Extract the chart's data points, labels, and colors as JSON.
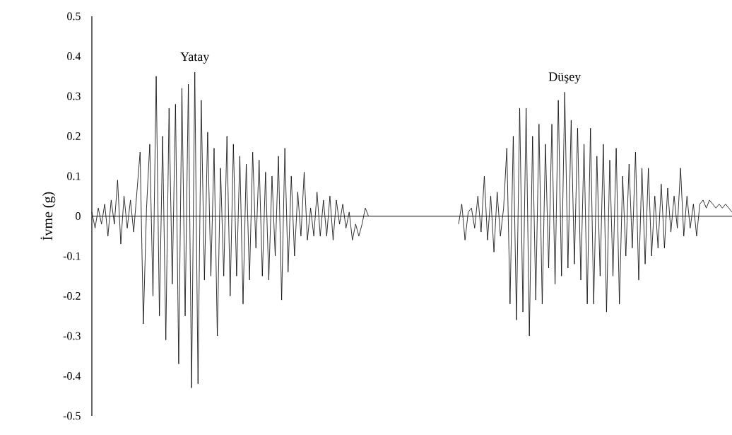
{
  "chart_data": {
    "type": "line",
    "ylabel": "İvme (g)",
    "ylim": [
      -0.5,
      0.5
    ],
    "yticks": [
      -0.5,
      -0.4,
      -0.3,
      -0.2,
      -0.1,
      0,
      0.1,
      0.2,
      0.3,
      0.4,
      0.5
    ],
    "categories": [
      null,
      null,
      null,
      null,
      null,
      null,
      null,
      null,
      null,
      null,
      null,
      null,
      null,
      null,
      null,
      null,
      null,
      null,
      null,
      null,
      null,
      null,
      null,
      null,
      null,
      null,
      null,
      null,
      null,
      null,
      null,
      null,
      null,
      null,
      null,
      null,
      null,
      null,
      null,
      null,
      null,
      null,
      null,
      null,
      null,
      null,
      null,
      null,
      null,
      null,
      null,
      null,
      null,
      null,
      null,
      null,
      null,
      null,
      null,
      null,
      null,
      null,
      null,
      null,
      null,
      null,
      null,
      null,
      null,
      null,
      null,
      null,
      null,
      null,
      null,
      null,
      null,
      null,
      null,
      null,
      null,
      null,
      null,
      null,
      null,
      null,
      null,
      null,
      null,
      null,
      null,
      null,
      null,
      null,
      null,
      null,
      null,
      null,
      null,
      null,
      null,
      null,
      null,
      null,
      null,
      null,
      null,
      null,
      null,
      null,
      null,
      null,
      null,
      null,
      null,
      null,
      null,
      null,
      null,
      null,
      null,
      null,
      null,
      null,
      null,
      null,
      null,
      null,
      null,
      null,
      null,
      null,
      null,
      null,
      null,
      null,
      null,
      null,
      null,
      null,
      null,
      null,
      null,
      null,
      null,
      null,
      null,
      null,
      null,
      null,
      null,
      null,
      null,
      null,
      null,
      null,
      null,
      null,
      null,
      null,
      null,
      null,
      null,
      null,
      null,
      null,
      null,
      null,
      null,
      null,
      null,
      null,
      null,
      null,
      null,
      null,
      null,
      null,
      null,
      null,
      null,
      null,
      null,
      null,
      null,
      null,
      null,
      null,
      null,
      null,
      null,
      null,
      null,
      null,
      null,
      null,
      null,
      null,
      null,
      null
    ],
    "series": [
      {
        "name": "Yatay",
        "color": "#000000",
        "values": [
          0.01,
          -0.03,
          0.02,
          -0.02,
          0.03,
          -0.05,
          0.04,
          -0.02,
          0.09,
          -0.07,
          0.05,
          -0.03,
          0.04,
          -0.04,
          0.06,
          0.16,
          -0.27,
          0.02,
          0.18,
          -0.2,
          0.35,
          -0.25,
          0.2,
          -0.31,
          0.27,
          -0.17,
          0.28,
          -0.37,
          0.32,
          -0.25,
          0.33,
          -0.43,
          0.36,
          -0.42,
          0.29,
          -0.16,
          0.21,
          -0.15,
          0.17,
          -0.3,
          0.12,
          -0.15,
          0.2,
          -0.2,
          0.18,
          -0.15,
          0.15,
          -0.22,
          0.13,
          -0.16,
          0.16,
          -0.08,
          0.14,
          -0.15,
          0.11,
          -0.16,
          0.1,
          -0.1,
          0.15,
          -0.21,
          0.17,
          -0.14,
          0.1,
          -0.1,
          0.06,
          -0.05,
          0.11,
          -0.06,
          0.02,
          -0.05,
          0.06,
          -0.05,
          0.04,
          -0.05,
          0.05,
          -0.06,
          0.04,
          -0.02,
          0.03,
          -0.03,
          0.01,
          -0.06,
          -0.02,
          -0.05,
          -0.02,
          0.02,
          0.0,
          null,
          null,
          null,
          null,
          null,
          null,
          null,
          null,
          null,
          null,
          null,
          null,
          null,
          null,
          null,
          null,
          null,
          null,
          null,
          null,
          null,
          null,
          null,
          null,
          null,
          null,
          null,
          null,
          null,
          null,
          null,
          null,
          null,
          null,
          null,
          null,
          null,
          null,
          null,
          null,
          null,
          null,
          null,
          null,
          null,
          null,
          null,
          null,
          null,
          null,
          null,
          null,
          null,
          null,
          null,
          null,
          null,
          null,
          null,
          null,
          null,
          null,
          null,
          null,
          null,
          null,
          null,
          null,
          null,
          null,
          null,
          null,
          null,
          null,
          null,
          null,
          null,
          null,
          null,
          null,
          null,
          null,
          null,
          null,
          null,
          null,
          null,
          null,
          null,
          null,
          null,
          null,
          null,
          null,
          null,
          null,
          null,
          null,
          null,
          null,
          null,
          null,
          null,
          null,
          null,
          null,
          null,
          null,
          null,
          null,
          null,
          null,
          null
        ]
      },
      {
        "name": "Düşey",
        "color": "#000000",
        "values": [
          null,
          null,
          null,
          null,
          null,
          null,
          null,
          null,
          null,
          null,
          null,
          null,
          null,
          null,
          null,
          null,
          null,
          null,
          null,
          null,
          null,
          null,
          null,
          null,
          null,
          null,
          null,
          null,
          null,
          null,
          null,
          null,
          null,
          null,
          null,
          null,
          null,
          null,
          null,
          null,
          null,
          null,
          null,
          null,
          null,
          null,
          null,
          null,
          null,
          null,
          null,
          null,
          null,
          null,
          null,
          null,
          null,
          null,
          null,
          null,
          null,
          null,
          null,
          null,
          null,
          null,
          null,
          null,
          null,
          null,
          null,
          null,
          null,
          null,
          null,
          null,
          null,
          null,
          null,
          null,
          null,
          null,
          null,
          null,
          null,
          null,
          null,
          null,
          null,
          null,
          null,
          null,
          null,
          null,
          null,
          null,
          null,
          null,
          null,
          null,
          null,
          null,
          null,
          null,
          null,
          null,
          null,
          null,
          null,
          null,
          null,
          null,
          null,
          null,
          -0.02,
          0.03,
          -0.06,
          0.01,
          0.02,
          -0.03,
          0.05,
          -0.04,
          0.1,
          -0.06,
          0.05,
          -0.09,
          0.06,
          -0.05,
          0.02,
          0.17,
          -0.22,
          0.2,
          -0.26,
          0.27,
          -0.24,
          0.27,
          -0.3,
          0.2,
          -0.21,
          0.23,
          -0.22,
          0.18,
          -0.13,
          0.23,
          -0.17,
          0.29,
          -0.15,
          0.31,
          -0.13,
          0.24,
          -0.12,
          0.22,
          -0.16,
          0.18,
          -0.22,
          0.22,
          -0.22,
          0.15,
          -0.15,
          0.18,
          -0.24,
          0.14,
          -0.15,
          0.17,
          -0.22,
          0.1,
          -0.1,
          0.13,
          -0.08,
          0.16,
          -0.16,
          0.12,
          -0.12,
          0.12,
          -0.1,
          0.05,
          -0.08,
          0.08,
          -0.08,
          0.07,
          -0.04,
          0.05,
          -0.03,
          0.12,
          -0.05,
          0.05,
          -0.03,
          0.03,
          -0.05,
          0.03,
          0.04,
          0.02,
          0.04,
          0.03,
          0.02,
          0.03,
          0.02,
          0.03,
          0.02,
          0.01
        ]
      }
    ]
  }
}
